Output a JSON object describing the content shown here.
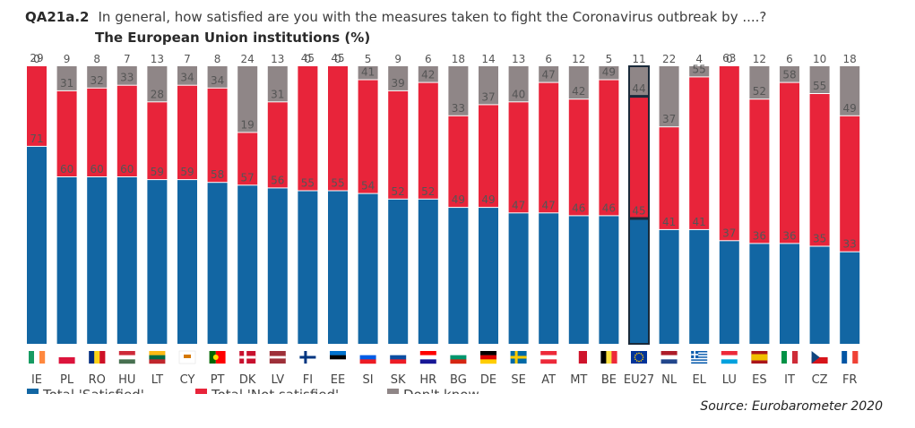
{
  "header": {
    "question_id": "QA21a.2",
    "question_text": "In general, how satisfied are you with the measures taken to fight the Coronavirus outbreak by ....?",
    "subtitle": "The European Union institutions (%)"
  },
  "source": "Source: Eurobarometer 2020",
  "colors": {
    "satisfied": "#1266a3",
    "not_satisfied": "#e8243a",
    "dont_know": "#8f8687",
    "highlight_border": "#1a2a3a"
  },
  "chart_data": {
    "type": "bar",
    "stacked": true,
    "percent_stacked": true,
    "categories": [
      "IE",
      "PL",
      "RO",
      "HU",
      "LT",
      "CY",
      "PT",
      "DK",
      "LV",
      "FI",
      "EE",
      "SI",
      "SK",
      "HR",
      "BG",
      "DE",
      "SE",
      "AT",
      "MT",
      "BE",
      "EU27",
      "NL",
      "EL",
      "LU",
      "ES",
      "IT",
      "CZ",
      "FR"
    ],
    "highlight_category": "EU27",
    "series": [
      {
        "name": "Total 'Satisfied'",
        "values": [
          71,
          60,
          60,
          60,
          59,
          59,
          58,
          57,
          56,
          55,
          55,
          54,
          52,
          52,
          49,
          49,
          47,
          47,
          46,
          46,
          45,
          41,
          41,
          37,
          36,
          36,
          35,
          33
        ]
      },
      {
        "name": "Total 'Not satisfied'",
        "values": [
          29,
          31,
          32,
          33,
          28,
          34,
          34,
          19,
          31,
          45,
          45,
          41,
          39,
          42,
          33,
          37,
          40,
          47,
          42,
          49,
          44,
          37,
          55,
          63,
          52,
          58,
          55,
          49
        ]
      },
      {
        "name": "Don't know",
        "values": [
          0,
          9,
          8,
          7,
          13,
          7,
          8,
          24,
          13,
          0,
          0,
          5,
          9,
          6,
          18,
          14,
          13,
          6,
          12,
          5,
          11,
          22,
          4,
          0,
          12,
          6,
          10,
          18
        ]
      }
    ],
    "data_labels": true,
    "flags": [
      {
        "code": "IE",
        "colors": [
          "#169b62",
          "#ffffff",
          "#ff883e"
        ],
        "orient": "v"
      },
      {
        "code": "PL",
        "colors": [
          "#ffffff",
          "#dc143c"
        ],
        "orient": "h"
      },
      {
        "code": "RO",
        "colors": [
          "#002b7f",
          "#fcd116",
          "#ce1126"
        ],
        "orient": "v"
      },
      {
        "code": "HU",
        "colors": [
          "#ce2939",
          "#ffffff",
          "#477050"
        ],
        "orient": "h"
      },
      {
        "code": "LT",
        "colors": [
          "#fdb913",
          "#006a44",
          "#c1272d"
        ],
        "orient": "h"
      },
      {
        "code": "CY",
        "colors": [
          "#ffffff",
          "#d57800"
        ],
        "orient": "cy"
      },
      {
        "code": "PT",
        "colors": [
          "#006600",
          "#ff0000"
        ],
        "orient": "pt"
      },
      {
        "code": "DK",
        "colors": [
          "#c8102e",
          "#ffffff"
        ],
        "orient": "nordic"
      },
      {
        "code": "LV",
        "colors": [
          "#9e3039",
          "#ffffff",
          "#9e3039"
        ],
        "orient": "lv"
      },
      {
        "code": "FI",
        "colors": [
          "#ffffff",
          "#003580"
        ],
        "orient": "nordic"
      },
      {
        "code": "EE",
        "colors": [
          "#0072ce",
          "#000000",
          "#ffffff"
        ],
        "orient": "h"
      },
      {
        "code": "SI",
        "colors": [
          "#ffffff",
          "#005ce5",
          "#ed1c24"
        ],
        "orient": "h"
      },
      {
        "code": "SK",
        "colors": [
          "#ffffff",
          "#0b4ea2",
          "#ee1c25"
        ],
        "orient": "h"
      },
      {
        "code": "HR",
        "colors": [
          "#ff0000",
          "#ffffff",
          "#171796"
        ],
        "orient": "h"
      },
      {
        "code": "BG",
        "colors": [
          "#ffffff",
          "#00966e",
          "#d62612"
        ],
        "orient": "h"
      },
      {
        "code": "DE",
        "colors": [
          "#000000",
          "#dd0000",
          "#ffce00"
        ],
        "orient": "h"
      },
      {
        "code": "SE",
        "colors": [
          "#006aa7",
          "#fecc00"
        ],
        "orient": "nordic"
      },
      {
        "code": "AT",
        "colors": [
          "#ed2939",
          "#ffffff",
          "#ed2939"
        ],
        "orient": "h"
      },
      {
        "code": "MT",
        "colors": [
          "#ffffff",
          "#cf142b"
        ],
        "orient": "v"
      },
      {
        "code": "BE",
        "colors": [
          "#000000",
          "#fae042",
          "#ed2939"
        ],
        "orient": "v"
      },
      {
        "code": "EU27",
        "colors": [
          "#003399",
          "#ffcc00"
        ],
        "orient": "eu"
      },
      {
        "code": "NL",
        "colors": [
          "#ae1c28",
          "#ffffff",
          "#21468b"
        ],
        "orient": "h"
      },
      {
        "code": "EL",
        "colors": [
          "#0d5eaf",
          "#ffffff"
        ],
        "orient": "gr"
      },
      {
        "code": "LU",
        "colors": [
          "#ed2939",
          "#ffffff",
          "#00a1de"
        ],
        "orient": "h"
      },
      {
        "code": "ES",
        "colors": [
          "#aa151b",
          "#f1bf00",
          "#aa151b"
        ],
        "orient": "es"
      },
      {
        "code": "IT",
        "colors": [
          "#009246",
          "#ffffff",
          "#ce2b37"
        ],
        "orient": "v"
      },
      {
        "code": "CZ",
        "colors": [
          "#ffffff",
          "#d7141a",
          "#11457e"
        ],
        "orient": "cz"
      },
      {
        "code": "FR",
        "colors": [
          "#0055a4",
          "#ffffff",
          "#ef4135"
        ],
        "orient": "v"
      }
    ]
  }
}
